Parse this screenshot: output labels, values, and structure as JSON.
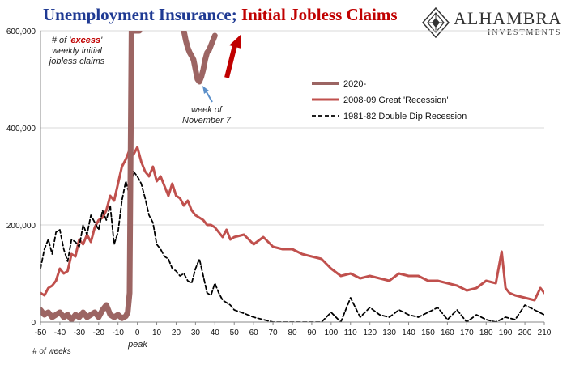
{
  "title": {
    "part1": "Unemployment Insurance; ",
    "part2": "Initial Jobless Claims"
  },
  "logo": {
    "brand": "ALHAMBRA",
    "sub": "INVESTMENTS",
    "icon": "alhambra-diamond-icon"
  },
  "annotations": {
    "excess_line1_a": "# of '",
    "excess_word": "excess",
    "excess_line1_b": "'",
    "excess_line2": "weekly initial",
    "excess_line3": "jobless claims",
    "week_line1": "week of",
    "week_line2": "November 7",
    "peak": "peak",
    "weeks": "# of weeks"
  },
  "colors": {
    "s2020": "#9c6563",
    "s2008": "#c0504d",
    "s1981": "#000000",
    "arrow_red": "#c00000",
    "arrow_blue": "#5b8fc9"
  },
  "chart_data": {
    "type": "line",
    "xlim": [
      -50,
      210
    ],
    "ylim": [
      0,
      600000
    ],
    "x_ticks": [
      -50,
      -40,
      -30,
      -20,
      -10,
      0,
      10,
      20,
      30,
      40,
      50,
      60,
      70,
      80,
      90,
      100,
      110,
      120,
      130,
      140,
      150,
      160,
      170,
      180,
      190,
      200,
      210
    ],
    "y_ticks": [
      0,
      200000,
      400000,
      600000
    ],
    "y_tick_labels": [
      "0",
      "200,000",
      "400,000",
      "600,000"
    ],
    "xlabel": "",
    "ylabel": "",
    "legend_position": "right",
    "grid": "horizontal",
    "series": [
      {
        "name": "2020-",
        "style": "solid-thick",
        "x": [
          -50,
          -48,
          -46,
          -44,
          -42,
          -40,
          -38,
          -36,
          -34,
          -32,
          -30,
          -28,
          -26,
          -24,
          -22,
          -20,
          -18,
          -16,
          -14,
          -12,
          -10,
          -8,
          -6,
          -5,
          -4,
          -3,
          -2,
          -1,
          0,
          1
        ],
        "y": [
          25000,
          15000,
          20000,
          10000,
          15000,
          20000,
          10000,
          15000,
          5000,
          15000,
          10000,
          20000,
          10000,
          15000,
          20000,
          10000,
          25000,
          35000,
          15000,
          10000,
          15000,
          8000,
          12000,
          20000,
          60000,
          600000,
          600000,
          600000,
          600000,
          600000
        ]
      },
      {
        "name": "2020- (week of November 7 segment)",
        "style": "solid-thick",
        "x": [
          24,
          25,
          26,
          27,
          28,
          29,
          30,
          31,
          32,
          33,
          34,
          35,
          36,
          37,
          38,
          39,
          40
        ],
        "y": [
          600000,
          580000,
          565000,
          555000,
          548000,
          540000,
          520000,
          500000,
          495000,
          505000,
          520000,
          540000,
          555000,
          560000,
          570000,
          580000,
          590000
        ]
      },
      {
        "name": "2008-09 Great 'Recession'",
        "style": "solid",
        "x": [
          -50,
          -48,
          -46,
          -44,
          -42,
          -40,
          -38,
          -36,
          -34,
          -32,
          -30,
          -28,
          -26,
          -24,
          -22,
          -20,
          -18,
          -16,
          -14,
          -12,
          -10,
          -8,
          -6,
          -4,
          -2,
          0,
          2,
          4,
          6,
          8,
          10,
          12,
          14,
          16,
          18,
          20,
          22,
          24,
          26,
          28,
          30,
          32,
          34,
          36,
          38,
          40,
          42,
          44,
          46,
          48,
          50,
          55,
          60,
          65,
          70,
          75,
          80,
          85,
          90,
          95,
          100,
          105,
          110,
          115,
          120,
          125,
          130,
          135,
          140,
          145,
          150,
          155,
          160,
          165,
          170,
          175,
          180,
          185,
          188,
          190,
          192,
          195,
          200,
          205,
          208,
          210
        ],
        "y": [
          60000,
          55000,
          70000,
          75000,
          85000,
          110000,
          100000,
          105000,
          140000,
          135000,
          170000,
          160000,
          180000,
          165000,
          195000,
          210000,
          215000,
          230000,
          260000,
          250000,
          285000,
          320000,
          335000,
          355000,
          345000,
          360000,
          330000,
          310000,
          300000,
          320000,
          290000,
          300000,
          280000,
          260000,
          285000,
          260000,
          255000,
          240000,
          250000,
          230000,
          220000,
          215000,
          210000,
          200000,
          200000,
          195000,
          185000,
          175000,
          190000,
          170000,
          175000,
          180000,
          160000,
          175000,
          155000,
          150000,
          150000,
          140000,
          135000,
          130000,
          110000,
          95000,
          100000,
          90000,
          95000,
          90000,
          85000,
          100000,
          95000,
          95000,
          85000,
          85000,
          80000,
          75000,
          65000,
          70000,
          85000,
          80000,
          145000,
          70000,
          60000,
          55000,
          50000,
          45000,
          70000,
          60000
        ]
      },
      {
        "name": "1981-82 Double Dip Recession",
        "style": "dashed",
        "x": [
          -50,
          -48,
          -46,
          -44,
          -42,
          -40,
          -38,
          -36,
          -34,
          -32,
          -30,
          -28,
          -26,
          -24,
          -22,
          -20,
          -18,
          -16,
          -14,
          -12,
          -10,
          -8,
          -6,
          -4,
          -2,
          0,
          2,
          4,
          6,
          8,
          10,
          12,
          14,
          16,
          18,
          20,
          22,
          24,
          26,
          28,
          30,
          32,
          34,
          36,
          38,
          40,
          42,
          44,
          46,
          48,
          50,
          55,
          60,
          65,
          70,
          75,
          80,
          85,
          90,
          95,
          100,
          105,
          110,
          115,
          120,
          125,
          130,
          135,
          140,
          145,
          150,
          155,
          160,
          165,
          170,
          175,
          180,
          185,
          190,
          195,
          200,
          205,
          210
        ],
        "y": [
          110000,
          150000,
          170000,
          140000,
          185000,
          190000,
          150000,
          125000,
          170000,
          165000,
          155000,
          200000,
          180000,
          220000,
          205000,
          190000,
          230000,
          210000,
          240000,
          160000,
          185000,
          250000,
          290000,
          260000,
          310000,
          300000,
          285000,
          255000,
          220000,
          205000,
          160000,
          150000,
          135000,
          130000,
          110000,
          105000,
          95000,
          100000,
          85000,
          80000,
          110000,
          130000,
          95000,
          60000,
          55000,
          80000,
          60000,
          45000,
          40000,
          35000,
          25000,
          18000,
          10000,
          5000,
          0,
          0,
          0,
          0,
          0,
          0,
          20000,
          0,
          50000,
          10000,
          30000,
          15000,
          10000,
          25000,
          15000,
          10000,
          20000,
          30000,
          5000,
          25000,
          0,
          15000,
          5000,
          0,
          10000,
          5000,
          35000,
          25000,
          15000
        ]
      }
    ]
  }
}
